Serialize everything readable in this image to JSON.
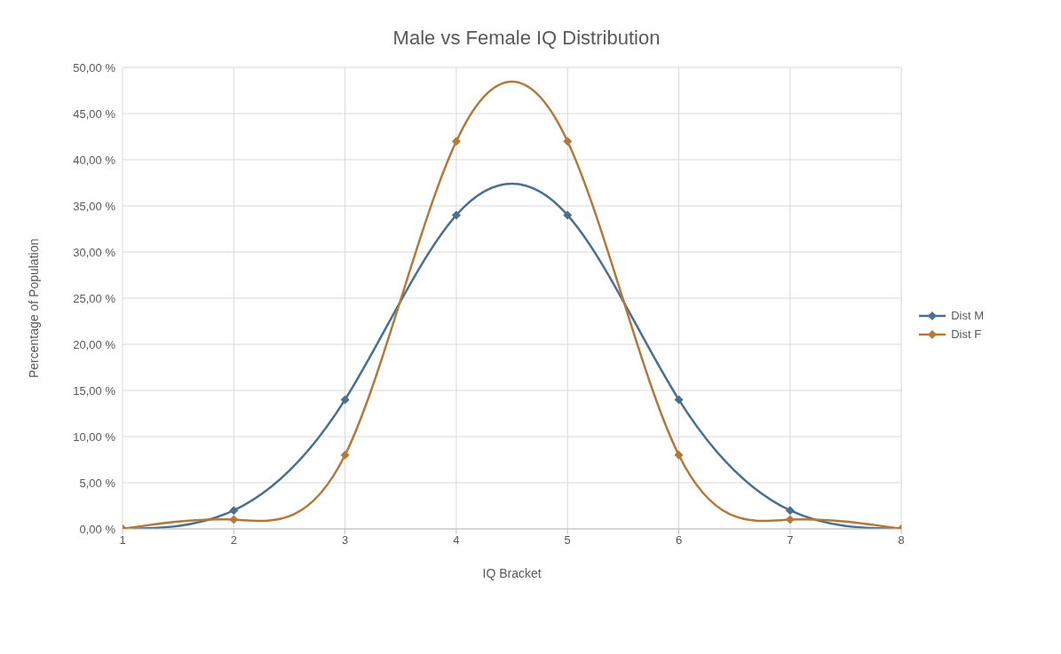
{
  "chart_data": {
    "type": "line",
    "title": "Male vs Female IQ Distribution",
    "xlabel": "IQ Bracket",
    "ylabel": "Percentage of Population",
    "x": [
      1,
      2,
      3,
      4,
      5,
      6,
      7,
      8
    ],
    "series": [
      {
        "name": "Dist M",
        "color": "#4a6f8f",
        "values": [
          0,
          2,
          14,
          34,
          34,
          14,
          2,
          0
        ]
      },
      {
        "name": "Dist F",
        "color": "#b07a3c",
        "values": [
          0,
          1,
          8,
          42,
          42,
          8,
          1,
          0
        ]
      }
    ],
    "xlim": [
      1,
      8
    ],
    "xticks": [
      1,
      2,
      3,
      4,
      5,
      6,
      7,
      8
    ],
    "ylim": [
      0,
      50
    ],
    "yticks": [
      {
        "value": 0,
        "label": "0,00 %"
      },
      {
        "value": 5,
        "label": "5,00 %"
      },
      {
        "value": 10,
        "label": "10,00 %"
      },
      {
        "value": 15,
        "label": "15,00 %"
      },
      {
        "value": 20,
        "label": "20,00 %"
      },
      {
        "value": 25,
        "label": "25,00 %"
      },
      {
        "value": 30,
        "label": "30,00 %"
      },
      {
        "value": 35,
        "label": "35,00 %"
      },
      {
        "value": 40,
        "label": "40,00 %"
      },
      {
        "value": 45,
        "label": "45,00 %"
      },
      {
        "value": 50,
        "label": "50,00 %"
      }
    ],
    "grid": true,
    "legend": "right",
    "marker": "diamond",
    "line_style": "solid"
  }
}
